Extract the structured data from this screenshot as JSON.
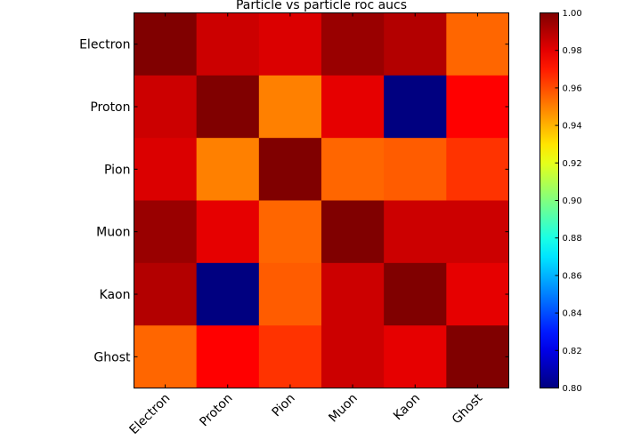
{
  "chart_data": {
    "type": "heatmap",
    "title": "Particle vs particle roc aucs",
    "x_labels": [
      "Electron",
      "Proton",
      "Pion",
      "Muon",
      "Kaon",
      "Ghost"
    ],
    "y_labels": [
      "Electron",
      "Proton",
      "Pion",
      "Muon",
      "Kaon",
      "Ghost"
    ],
    "values": [
      [
        1.0,
        0.985,
        0.982,
        0.995,
        0.99,
        0.955
      ],
      [
        0.985,
        1.0,
        0.95,
        0.98,
        0.8,
        0.975
      ],
      [
        0.982,
        0.95,
        1.0,
        0.955,
        0.957,
        0.965
      ],
      [
        0.995,
        0.98,
        0.955,
        1.0,
        0.985,
        0.985
      ],
      [
        0.99,
        0.8,
        0.957,
        0.985,
        1.0,
        0.98
      ],
      [
        0.955,
        0.975,
        0.965,
        0.985,
        0.98,
        1.0
      ]
    ],
    "colorbar": {
      "range": [
        0.8,
        1.0
      ],
      "colormap": "jet",
      "ticks": [
        "0.80",
        "0.82",
        "0.84",
        "0.86",
        "0.88",
        "0.90",
        "0.92",
        "0.94",
        "0.96",
        "0.98",
        "1.00"
      ]
    },
    "xlabel": "",
    "ylabel": "",
    "grid": false
  }
}
